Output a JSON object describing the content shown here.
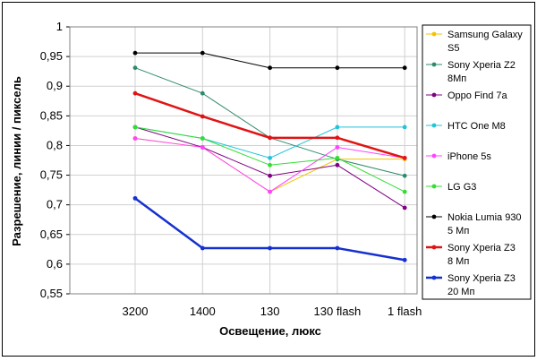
{
  "chart_data": {
    "type": "line",
    "title": "",
    "xlabel": "Освещение, люкс",
    "ylabel": "Разрешение, линии / пиксель",
    "categories": [
      "3200",
      "1400",
      "130",
      "130 flash",
      "1 flash"
    ],
    "ylim": [
      0.55,
      1.0
    ],
    "yticks": [
      "0,55",
      "0,6",
      "0,65",
      "0,7",
      "0,75",
      "0,8",
      "0,85",
      "0,9",
      "0,95",
      "1"
    ],
    "grid": true,
    "legend_position": "right",
    "series": [
      {
        "name": "Samsung Galaxy S5",
        "legend_lines": [
          "Samsung Galaxy",
          "S5"
        ],
        "color": "#f2c400",
        "values": [
          0.812,
          0.797,
          0.722,
          0.777,
          0.777
        ]
      },
      {
        "name": "Sony Xperia Z2 8Мп",
        "legend_lines": [
          "Sony Xperia Z2",
          "8Мп"
        ],
        "color": "#2e8b6a",
        "values": [
          0.931,
          0.888,
          0.813,
          0.777,
          0.749
        ]
      },
      {
        "name": "Oppo Find 7a",
        "legend_lines": [
          "Oppo Find 7a"
        ],
        "color": "#800080",
        "values": [
          0.831,
          0.797,
          0.749,
          0.767,
          0.695
        ]
      },
      {
        "name": "HTC One M8",
        "legend_lines": [
          "HTC One M8"
        ],
        "color": "#22c4d8",
        "values": [
          0.831,
          0.812,
          0.779,
          0.831,
          0.831
        ]
      },
      {
        "name": "iPhone 5s",
        "legend_lines": [
          "iPhone 5s"
        ],
        "color": "#ff44ff",
        "values": [
          0.812,
          0.797,
          0.722,
          0.797,
          0.779
        ]
      },
      {
        "name": "LG G3",
        "legend_lines": [
          "LG G3"
        ],
        "color": "#33dd33",
        "values": [
          0.831,
          0.812,
          0.767,
          0.779,
          0.722
        ]
      },
      {
        "name": "Nokia Lumia 930 5 Мп",
        "legend_lines": [
          "Nokia Lumia 930",
          "5 Мп"
        ],
        "color": "#000000",
        "values": [
          0.956,
          0.956,
          0.931,
          0.931,
          0.931
        ]
      },
      {
        "name": "Sony Xperia Z3 8 Мп",
        "legend_lines": [
          "Sony Xperia Z3",
          "8 Мп"
        ],
        "color": "#e01414",
        "values": [
          0.888,
          0.849,
          0.813,
          0.813,
          0.779
        ]
      },
      {
        "name": "Sony Xperia Z3 20 Мп",
        "legend_lines": [
          "Sony Xperia Z3",
          "20 Мп"
        ],
        "color": "#1530d0",
        "values": [
          0.711,
          0.627,
          0.627,
          0.627,
          0.607
        ]
      }
    ]
  }
}
